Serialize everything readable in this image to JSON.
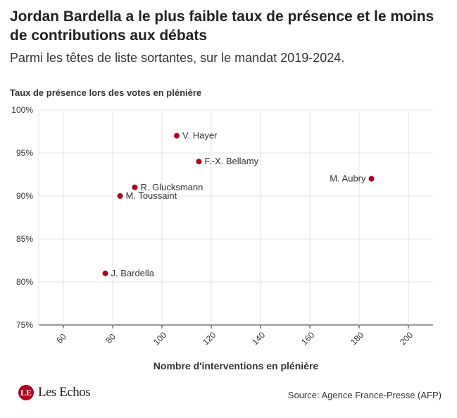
{
  "header": {
    "title": "Jordan Bardella a le plus faible taux de présence et le moins de contributions aux débats",
    "subtitle": "Parmi les têtes de liste sortantes, sur le mandat 2019-2024."
  },
  "footer": {
    "logo_text": "Les Echos",
    "source": "Source: Agence France-Presse (AFP)"
  },
  "colors": {
    "point": "#b0001e",
    "grid": "#e6e6e6",
    "axis": "#333333"
  },
  "chart_data": {
    "type": "scatter",
    "xlabel": "Nombre d'interventions en plénière",
    "ylabel": "Taux de présence lors des votes en plénière",
    "xlim": [
      50,
      210
    ],
    "ylim": [
      75,
      100
    ],
    "x_ticks": [
      60,
      80,
      100,
      120,
      140,
      160,
      180,
      200
    ],
    "y_ticks": [
      75,
      80,
      85,
      90,
      95,
      100
    ],
    "y_tick_format": "%",
    "grid": true,
    "points": [
      {
        "label": "V. Hayer",
        "x": 106,
        "y": 97,
        "label_side": "right"
      },
      {
        "label": "F.-X. Bellamy",
        "x": 115,
        "y": 94,
        "label_side": "right"
      },
      {
        "label": "M. Aubry",
        "x": 185,
        "y": 92,
        "label_side": "left"
      },
      {
        "label": "R. Glucksmann",
        "x": 89,
        "y": 91,
        "label_side": "right"
      },
      {
        "label": "M. Toussaint",
        "x": 83,
        "y": 90,
        "label_side": "right"
      },
      {
        "label": "J. Bardella",
        "x": 77,
        "y": 81,
        "label_side": "right"
      }
    ]
  }
}
